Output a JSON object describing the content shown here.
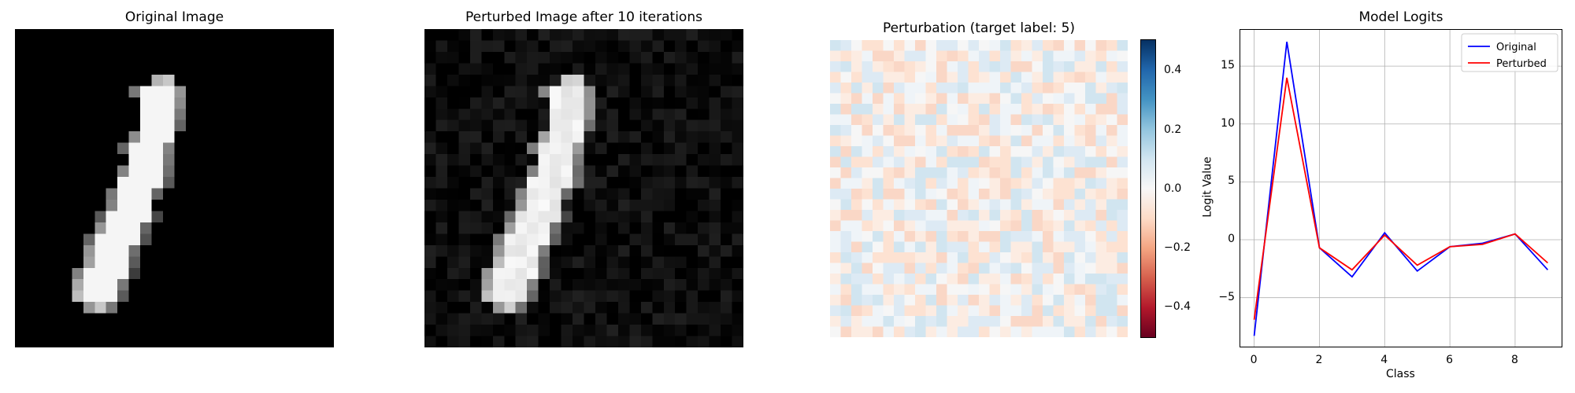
{
  "panels": {
    "original": {
      "title": "Original Image"
    },
    "perturbed": {
      "title": "Perturbed Image after 10 iterations"
    },
    "perturbation": {
      "title": "Perturbation (target label: 5)"
    },
    "logits": {
      "title": "Model Logits"
    }
  },
  "colorbar": {
    "ticks": [
      "0.4",
      "0.2",
      "0.0",
      "−0.2",
      "−0.4"
    ],
    "colormap": "RdBu",
    "range": [
      -0.5,
      0.5
    ]
  },
  "chart_data": [
    {
      "type": "line",
      "title": "Model Logits",
      "xlabel": "Class",
      "ylabel": "Logit Value",
      "x": [
        0,
        1,
        2,
        3,
        4,
        5,
        6,
        7,
        8,
        9
      ],
      "x_ticks": [
        "0",
        "2",
        "4",
        "6",
        "8"
      ],
      "y_ticks": [
        "15",
        "10",
        "5",
        "0",
        "−5"
      ],
      "xlim": [
        -0.45,
        9.45
      ],
      "ylim": [
        -9.3,
        18.2
      ],
      "grid": true,
      "legend_position": "top-right",
      "series": [
        {
          "name": "Original",
          "color": "#0000ff",
          "values": [
            -8.3,
            17.1,
            -0.7,
            -3.2,
            0.6,
            -2.7,
            -0.6,
            -0.3,
            0.5,
            -2.6
          ]
        },
        {
          "name": "Perturbed",
          "color": "#ff0000",
          "values": [
            -6.9,
            14.0,
            -0.7,
            -2.6,
            0.4,
            -2.2,
            -0.6,
            -0.4,
            0.5,
            -2.0
          ]
        }
      ]
    }
  ]
}
